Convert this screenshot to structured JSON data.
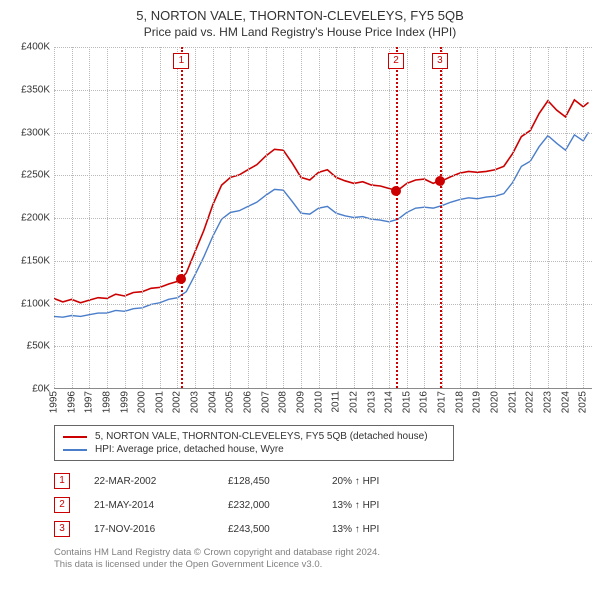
{
  "title": "5, NORTON VALE, THORNTON-CLEVELEYS, FY5 5QB",
  "subtitle": "Price paid vs. HM Land Registry's House Price Index (HPI)",
  "chart": {
    "type": "line",
    "background_color": "#ffffff",
    "grid_color": "#b9b9b9",
    "axis_color": "#8a8a8a",
    "label_color": "#333333",
    "label_fontsize": 10,
    "x": {
      "min": 1995,
      "max": 2025.5,
      "ticks": [
        1995,
        1996,
        1997,
        1998,
        1999,
        2000,
        2001,
        2002,
        2003,
        2004,
        2005,
        2006,
        2007,
        2008,
        2009,
        2010,
        2011,
        2012,
        2013,
        2014,
        2015,
        2016,
        2017,
        2018,
        2019,
        2020,
        2021,
        2022,
        2023,
        2024,
        2025
      ]
    },
    "y": {
      "min": 0,
      "max": 400000,
      "ticks": [
        0,
        50000,
        100000,
        150000,
        200000,
        250000,
        300000,
        350000,
        400000
      ],
      "tick_labels": [
        "£0K",
        "£50K",
        "£100K",
        "£150K",
        "£200K",
        "£250K",
        "£300K",
        "£350K",
        "£400K"
      ]
    },
    "series": [
      {
        "name": "price",
        "color": "#cc0000",
        "width": 1.6,
        "label": "5, NORTON VALE, THORNTON-CLEVELEYS, FY5 5QB (detached house)",
        "points": [
          [
            1995.0,
            105000
          ],
          [
            1995.5,
            101000
          ],
          [
            1996.0,
            104000
          ],
          [
            1996.5,
            100000
          ],
          [
            1997.0,
            103000
          ],
          [
            1997.5,
            106000
          ],
          [
            1998.0,
            105000
          ],
          [
            1998.5,
            110000
          ],
          [
            1999.0,
            108000
          ],
          [
            1999.5,
            112000
          ],
          [
            2000.0,
            113000
          ],
          [
            2000.5,
            117000
          ],
          [
            2001.0,
            118000
          ],
          [
            2001.5,
            122000
          ],
          [
            2002.0,
            125000
          ],
          [
            2002.22,
            128450
          ],
          [
            2002.5,
            135000
          ],
          [
            2003.0,
            160000
          ],
          [
            2003.5,
            185000
          ],
          [
            2004.0,
            215000
          ],
          [
            2004.5,
            238000
          ],
          [
            2005.0,
            247000
          ],
          [
            2005.5,
            250000
          ],
          [
            2006.0,
            256000
          ],
          [
            2006.5,
            262000
          ],
          [
            2007.0,
            272000
          ],
          [
            2007.5,
            280000
          ],
          [
            2008.0,
            279000
          ],
          [
            2008.5,
            264000
          ],
          [
            2009.0,
            247000
          ],
          [
            2009.5,
            244000
          ],
          [
            2010.0,
            253000
          ],
          [
            2010.5,
            256000
          ],
          [
            2011.0,
            247000
          ],
          [
            2011.5,
            243000
          ],
          [
            2012.0,
            240000
          ],
          [
            2012.5,
            242000
          ],
          [
            2013.0,
            238000
          ],
          [
            2013.5,
            237000
          ],
          [
            2014.0,
            234000
          ],
          [
            2014.39,
            232000
          ],
          [
            2014.5,
            232000
          ],
          [
            2015.0,
            240000
          ],
          [
            2015.5,
            244000
          ],
          [
            2016.0,
            245000
          ],
          [
            2016.5,
            240000
          ],
          [
            2016.88,
            243500
          ],
          [
            2017.0,
            243000
          ],
          [
            2017.5,
            248000
          ],
          [
            2018.0,
            252000
          ],
          [
            2018.5,
            254000
          ],
          [
            2019.0,
            253000
          ],
          [
            2019.5,
            254000
          ],
          [
            2020.0,
            256000
          ],
          [
            2020.5,
            260000
          ],
          [
            2021.0,
            275000
          ],
          [
            2021.5,
            295000
          ],
          [
            2022.0,
            302000
          ],
          [
            2022.5,
            322000
          ],
          [
            2023.0,
            337000
          ],
          [
            2023.5,
            326000
          ],
          [
            2024.0,
            318000
          ],
          [
            2024.5,
            338000
          ],
          [
            2025.0,
            330000
          ],
          [
            2025.3,
            335000
          ]
        ]
      },
      {
        "name": "hpi",
        "color": "#4a7ecb",
        "width": 1.4,
        "label": "HPI: Average price, detached house, Wyre",
        "points": [
          [
            1995.0,
            84000
          ],
          [
            1995.5,
            83000
          ],
          [
            1996.0,
            85000
          ],
          [
            1996.5,
            84000
          ],
          [
            1997.0,
            86000
          ],
          [
            1997.5,
            88000
          ],
          [
            1998.0,
            88000
          ],
          [
            1998.5,
            91000
          ],
          [
            1999.0,
            90000
          ],
          [
            1999.5,
            93000
          ],
          [
            2000.0,
            94000
          ],
          [
            2000.5,
            98000
          ],
          [
            2001.0,
            100000
          ],
          [
            2001.5,
            104000
          ],
          [
            2002.0,
            106000
          ],
          [
            2002.5,
            113000
          ],
          [
            2003.0,
            133000
          ],
          [
            2003.5,
            154000
          ],
          [
            2004.0,
            178000
          ],
          [
            2004.5,
            198000
          ],
          [
            2005.0,
            206000
          ],
          [
            2005.5,
            208000
          ],
          [
            2006.0,
            213000
          ],
          [
            2006.5,
            218000
          ],
          [
            2007.0,
            226000
          ],
          [
            2007.5,
            233000
          ],
          [
            2008.0,
            232000
          ],
          [
            2008.5,
            219000
          ],
          [
            2009.0,
            205000
          ],
          [
            2009.5,
            204000
          ],
          [
            2010.0,
            211000
          ],
          [
            2010.5,
            213000
          ],
          [
            2011.0,
            205000
          ],
          [
            2011.5,
            202000
          ],
          [
            2012.0,
            200000
          ],
          [
            2012.5,
            201000
          ],
          [
            2013.0,
            198000
          ],
          [
            2013.5,
            197000
          ],
          [
            2014.0,
            195000
          ],
          [
            2014.5,
            198000
          ],
          [
            2015.0,
            206000
          ],
          [
            2015.5,
            211000
          ],
          [
            2016.0,
            212000
          ],
          [
            2016.5,
            211000
          ],
          [
            2017.0,
            214000
          ],
          [
            2017.5,
            218000
          ],
          [
            2018.0,
            221000
          ],
          [
            2018.5,
            223000
          ],
          [
            2019.0,
            222000
          ],
          [
            2019.5,
            224000
          ],
          [
            2020.0,
            225000
          ],
          [
            2020.5,
            228000
          ],
          [
            2021.0,
            241000
          ],
          [
            2021.5,
            260000
          ],
          [
            2022.0,
            266000
          ],
          [
            2022.5,
            283000
          ],
          [
            2023.0,
            296000
          ],
          [
            2023.5,
            287000
          ],
          [
            2024.0,
            279000
          ],
          [
            2024.5,
            297000
          ],
          [
            2025.0,
            290000
          ],
          [
            2025.3,
            300000
          ]
        ]
      }
    ],
    "markers": [
      {
        "n": "1",
        "x": 2002.22,
        "y": 128450
      },
      {
        "n": "2",
        "x": 2014.39,
        "y": 232000
      },
      {
        "n": "3",
        "x": 2016.88,
        "y": 243500
      }
    ],
    "marker_color": "#cc0000",
    "marker_box_bg": "#ffffff",
    "marker_dot_size": 10
  },
  "legend": {
    "border_color": "#666666",
    "items": [
      {
        "swatch": "#cc0000",
        "label": "5, NORTON VALE, THORNTON-CLEVELEYS, FY5 5QB (detached house)"
      },
      {
        "swatch": "#4a7ecb",
        "label": "HPI: Average price, detached house, Wyre"
      }
    ]
  },
  "sales": [
    {
      "n": "1",
      "date": "22-MAR-2002",
      "price": "£128,450",
      "hpi": "20% ↑ HPI"
    },
    {
      "n": "2",
      "date": "21-MAY-2014",
      "price": "£232,000",
      "hpi": "13% ↑ HPI"
    },
    {
      "n": "3",
      "date": "17-NOV-2016",
      "price": "£243,500",
      "hpi": "13% ↑ HPI"
    }
  ],
  "footer": {
    "line1": "Contains HM Land Registry data © Crown copyright and database right 2024.",
    "line2": "This data is licensed under the Open Government Licence v3.0."
  }
}
